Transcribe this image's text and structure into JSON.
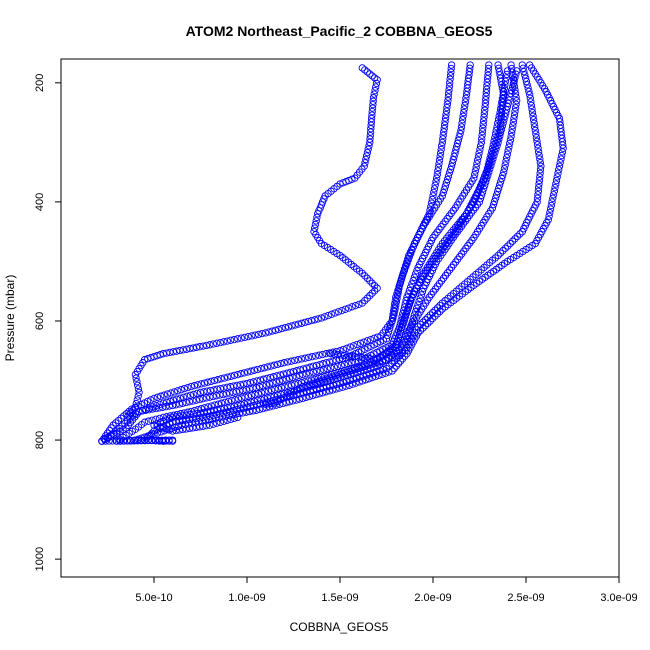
{
  "chart_data": {
    "type": "scatter",
    "title": "ATOM2 Northeast_Pacific_2 COBBNA_GEOS5",
    "xlabel": "COBBNA_GEOS5",
    "ylabel": "Pressure (mbar)",
    "xlim": [
      0,
      3e-09
    ],
    "ylim": [
      1030,
      160
    ],
    "y_reversed": true,
    "grid": false,
    "legend": "none",
    "marker": "open-circle",
    "color": "#0000ff",
    "x_ticks": [
      {
        "value": 5e-10,
        "label": "5.0e-10"
      },
      {
        "value": 1e-09,
        "label": "1.0e-09"
      },
      {
        "value": 1.5e-09,
        "label": "1.5e-09"
      },
      {
        "value": 2e-09,
        "label": "2.0e-09"
      },
      {
        "value": 2.5e-09,
        "label": "2.5e-09"
      },
      {
        "value": 3e-09,
        "label": "3.0e-09"
      }
    ],
    "y_ticks": [
      {
        "value": 200,
        "label": "200"
      },
      {
        "value": 400,
        "label": "400"
      },
      {
        "value": 600,
        "label": "600"
      },
      {
        "value": 800,
        "label": "800"
      },
      {
        "value": 1000,
        "label": "1000"
      }
    ],
    "series": [
      {
        "points": [
          [
            1.62e-09,
            175
          ],
          [
            1.66e-09,
            185
          ],
          [
            1.7e-09,
            195
          ],
          [
            1.68e-09,
            225
          ],
          [
            1.67e-09,
            260
          ],
          [
            1.66e-09,
            300
          ],
          [
            1.63e-09,
            340
          ],
          [
            1.58e-09,
            360
          ],
          [
            1.5e-09,
            370
          ],
          [
            1.42e-09,
            390
          ],
          [
            1.38e-09,
            420
          ],
          [
            1.36e-09,
            450
          ],
          [
            1.4e-09,
            470
          ],
          [
            1.5e-09,
            490
          ],
          [
            1.62e-09,
            520
          ],
          [
            1.7e-09,
            545
          ],
          [
            1.62e-09,
            570
          ],
          [
            1.4e-09,
            595
          ],
          [
            1.1e-09,
            620
          ],
          [
            8e-10,
            640
          ],
          [
            5.5e-10,
            655
          ],
          [
            4.5e-10,
            665
          ],
          [
            4e-10,
            690
          ],
          [
            4.2e-10,
            720
          ],
          [
            4e-10,
            745
          ],
          [
            3.6e-10,
            760
          ]
        ]
      },
      {
        "points": [
          [
            2.1e-09,
            170
          ],
          [
            2.08e-09,
            230
          ],
          [
            2.05e-09,
            300
          ],
          [
            2.02e-09,
            360
          ],
          [
            1.98e-09,
            420
          ],
          [
            1.9e-09,
            470
          ],
          [
            1.84e-09,
            520
          ],
          [
            1.8e-09,
            560
          ],
          [
            1.78e-09,
            600
          ],
          [
            1.72e-09,
            625
          ],
          [
            1.5e-09,
            650
          ],
          [
            1.2e-09,
            670
          ],
          [
            9.5e-10,
            690
          ],
          [
            7e-10,
            710
          ],
          [
            5e-10,
            730
          ],
          [
            3.8e-10,
            748
          ],
          [
            2.8e-10,
            775
          ],
          [
            2.2e-10,
            802
          ]
        ]
      },
      {
        "points": [
          [
            2.2e-09,
            170
          ],
          [
            2.18e-09,
            220
          ],
          [
            2.15e-09,
            280
          ],
          [
            2.1e-09,
            340
          ],
          [
            2.05e-09,
            390
          ],
          [
            1.95e-09,
            440
          ],
          [
            1.87e-09,
            490
          ],
          [
            1.82e-09,
            540
          ],
          [
            1.79e-09,
            590
          ],
          [
            1.75e-09,
            630
          ],
          [
            1.55e-09,
            660
          ],
          [
            1.25e-09,
            685
          ],
          [
            1e-09,
            705
          ],
          [
            7.5e-10,
            720
          ],
          [
            5.5e-10,
            738
          ],
          [
            4e-10,
            755
          ],
          [
            3e-10,
            785
          ],
          [
            2.2e-10,
            802
          ],
          [
            4.5e-10,
            800
          ],
          [
            6e-10,
            802
          ]
        ]
      },
      {
        "points": [
          [
            2.3e-09,
            170
          ],
          [
            2.28e-09,
            240
          ],
          [
            2.26e-09,
            300
          ],
          [
            2.22e-09,
            360
          ],
          [
            2.12e-09,
            410
          ],
          [
            2e-09,
            460
          ],
          [
            1.92e-09,
            510
          ],
          [
            1.86e-09,
            560
          ],
          [
            1.82e-09,
            610
          ],
          [
            1.78e-09,
            640
          ],
          [
            1.6e-09,
            668
          ],
          [
            1.3e-09,
            690
          ],
          [
            1.05e-09,
            712
          ],
          [
            8e-10,
            728
          ],
          [
            6e-10,
            742
          ],
          [
            4.2e-10,
            752
          ],
          [
            3.5e-10,
            780
          ],
          [
            2.2e-10,
            802
          ]
        ]
      },
      {
        "points": [
          [
            2.35e-09,
            170
          ],
          [
            2.38e-09,
            220
          ],
          [
            2.36e-09,
            280
          ],
          [
            2.3e-09,
            340
          ],
          [
            2.22e-09,
            400
          ],
          [
            2.12e-09,
            450
          ],
          [
            2e-09,
            500
          ],
          [
            1.9e-09,
            550
          ],
          [
            1.84e-09,
            600
          ],
          [
            1.8e-09,
            645
          ],
          [
            1.65e-09,
            672
          ],
          [
            1.4e-09,
            695
          ],
          [
            1.15e-09,
            715
          ],
          [
            9e-10,
            735
          ],
          [
            7e-10,
            752
          ],
          [
            5.5e-10,
            762
          ],
          [
            4.5e-10,
            770
          ],
          [
            4e-10,
            782
          ],
          [
            3e-10,
            802
          ],
          [
            6e-10,
            800
          ]
        ]
      },
      {
        "points": [
          [
            2.42e-09,
            170
          ],
          [
            2.45e-09,
            230
          ],
          [
            2.42e-09,
            290
          ],
          [
            2.38e-09,
            350
          ],
          [
            2.32e-09,
            410
          ],
          [
            2.22e-09,
            460
          ],
          [
            2.1e-09,
            510
          ],
          [
            1.98e-09,
            560
          ],
          [
            1.88e-09,
            610
          ],
          [
            1.82e-09,
            648
          ],
          [
            1.7e-09,
            676
          ],
          [
            1.45e-09,
            700
          ],
          [
            1.2e-09,
            722
          ],
          [
            9.5e-10,
            742
          ],
          [
            7.5e-10,
            755
          ],
          [
            6e-10,
            762
          ],
          [
            5e-10,
            775
          ],
          [
            6e-10,
            785
          ],
          [
            8e-10,
            775
          ],
          [
            9.5e-10,
            762
          ]
        ]
      },
      {
        "points": [
          [
            2.48e-09,
            170
          ],
          [
            2.52e-09,
            220
          ],
          [
            2.55e-09,
            280
          ],
          [
            2.58e-09,
            340
          ],
          [
            2.56e-09,
            400
          ],
          [
            2.48e-09,
            450
          ],
          [
            2.35e-09,
            490
          ],
          [
            2.2e-09,
            530
          ],
          [
            2.05e-09,
            570
          ],
          [
            1.92e-09,
            610
          ],
          [
            1.85e-09,
            650
          ],
          [
            1.75e-09,
            680
          ],
          [
            1.5e-09,
            705
          ],
          [
            1.25e-09,
            725
          ],
          [
            1e-09,
            745
          ],
          [
            8e-10,
            760
          ],
          [
            6e-10,
            770
          ],
          [
            5e-10,
            785
          ],
          [
            4.5e-10,
            800
          ],
          [
            5.5e-10,
            802
          ]
        ]
      },
      {
        "points": [
          [
            2.52e-09,
            170
          ],
          [
            2.6e-09,
            210
          ],
          [
            2.68e-09,
            260
          ],
          [
            2.7e-09,
            310
          ],
          [
            2.66e-09,
            370
          ],
          [
            2.62e-09,
            430
          ],
          [
            2.55e-09,
            470
          ],
          [
            2.4e-09,
            500
          ],
          [
            2.22e-09,
            540
          ],
          [
            2.05e-09,
            580
          ],
          [
            1.92e-09,
            620
          ],
          [
            1.86e-09,
            655
          ],
          [
            1.78e-09,
            684
          ],
          [
            1.55e-09,
            708
          ],
          [
            1.3e-09,
            730
          ],
          [
            1.05e-09,
            750
          ],
          [
            8.5e-10,
            762
          ],
          [
            6.5e-10,
            775
          ],
          [
            5e-10,
            790
          ],
          [
            4e-10,
            800
          ]
        ]
      },
      {
        "points": [
          [
            2.4e-09,
            180
          ],
          [
            2.36e-09,
            250
          ],
          [
            2.32e-09,
            310
          ],
          [
            2.28e-09,
            360
          ],
          [
            2.18e-09,
            420
          ],
          [
            2.05e-09,
            470
          ],
          [
            1.95e-09,
            520
          ],
          [
            1.88e-09,
            565
          ],
          [
            1.84e-09,
            605
          ],
          [
            1.8e-09,
            640
          ],
          [
            1.7e-09,
            665
          ],
          [
            1.58e-09,
            660
          ],
          [
            1.45e-09,
            655
          ]
        ]
      },
      {
        "points": [
          [
            2.45e-09,
            180
          ],
          [
            2.4e-09,
            240
          ],
          [
            2.35e-09,
            300
          ],
          [
            2.3e-09,
            350
          ],
          [
            2.25e-09,
            400
          ],
          [
            2.12e-09,
            455
          ],
          [
            2.02e-09,
            500
          ],
          [
            1.95e-09,
            545
          ],
          [
            1.9e-09,
            590
          ],
          [
            1.86e-09,
            630
          ],
          [
            1.8e-09,
            660
          ],
          [
            1.55e-09,
            685
          ],
          [
            1.3e-09,
            710
          ],
          [
            1.15e-09,
            738
          ],
          [
            1.1e-09,
            740
          ]
        ]
      }
    ]
  }
}
